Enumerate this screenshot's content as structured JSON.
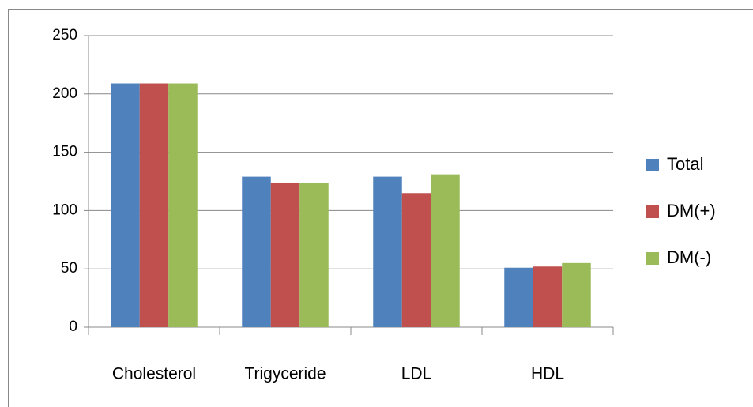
{
  "chart_data": {
    "type": "bar",
    "categories": [
      "Cholesterol",
      "Trigyceride",
      "LDL",
      "HDL"
    ],
    "series": [
      {
        "name": "Total",
        "color": "#4f81bd",
        "values": [
          209,
          129,
          129,
          51
        ]
      },
      {
        "name": "DM(+)",
        "color": "#c0504d",
        "values": [
          209,
          124,
          115,
          52
        ]
      },
      {
        "name": "DM(-)",
        "color": "#9bbb59",
        "values": [
          209,
          124,
          131,
          55
        ]
      }
    ],
    "ylim": [
      0,
      250
    ],
    "yticks": [
      0,
      50,
      100,
      150,
      200,
      250
    ],
    "grid": true,
    "legend": "right"
  }
}
